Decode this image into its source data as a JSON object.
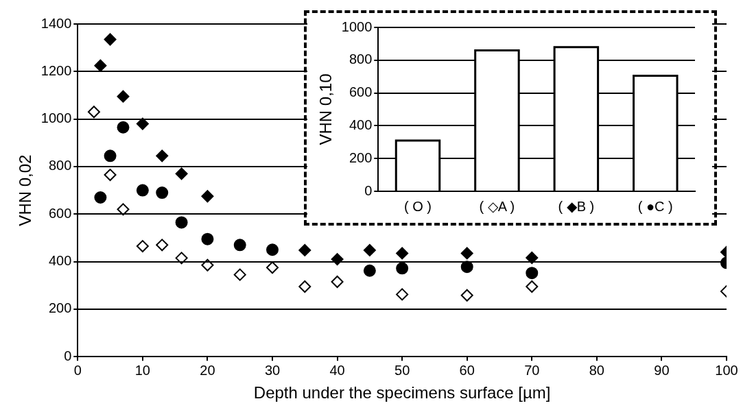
{
  "chart_data": [
    {
      "type": "scatter",
      "xlabel": "Depth under the specimens surface [µm]",
      "ylabel": "VHN 0,02",
      "xlim": [
        0,
        100
      ],
      "xticks": [
        0,
        10,
        20,
        30,
        40,
        50,
        60,
        70,
        80,
        90,
        100
      ],
      "ylim": [
        0,
        1400
      ],
      "yticks": [
        0,
        200,
        400,
        600,
        800,
        1000,
        1200,
        1400
      ],
      "grid": "y",
      "legend": false,
      "series": [
        {
          "color": "#000000",
          "marker": "diamond",
          "x": [
            2.5,
            5,
            7,
            10,
            13,
            16,
            20,
            25,
            30,
            35,
            40,
            50,
            60,
            70,
            100
          ],
          "values": [
            1030,
            765,
            620,
            465,
            470,
            415,
            385,
            345,
            375,
            295,
            315,
            262,
            258,
            295,
            275
          ]
        },
        {
          "color": "#000000",
          "marker": "diamond",
          "x": [
            3.5,
            5,
            7,
            10,
            13,
            16,
            20,
            35,
            40,
            45,
            50,
            60,
            70,
            100
          ],
          "values": [
            1225,
            1335,
            1095,
            980,
            845,
            770,
            675,
            448,
            410,
            448,
            435,
            435,
            416,
            440
          ]
        },
        {
          "color": "#000000",
          "marker": "circle",
          "x": [
            3.5,
            5,
            7,
            10,
            13,
            16,
            20,
            25,
            30,
            35,
            40,
            45,
            50,
            60,
            70,
            100
          ],
          "values": [
            670,
            845,
            965,
            700,
            690,
            565,
            495,
            470,
            450,
            null,
            null,
            362,
            372,
            378,
            352,
            395
          ]
        }
      ]
    },
    {
      "type": "bar",
      "ylabel": "VHN 0,10",
      "categories": [
        "( O )",
        "( ◇A )",
        "( ◆B )",
        "( ●C )"
      ],
      "values": [
        310,
        860,
        880,
        705
      ],
      "color": "#ffffff",
      "ylim": [
        0,
        1000
      ],
      "yticks": [
        0,
        200,
        400,
        600,
        800,
        1000
      ],
      "grid": "y",
      "legend": false
    }
  ]
}
